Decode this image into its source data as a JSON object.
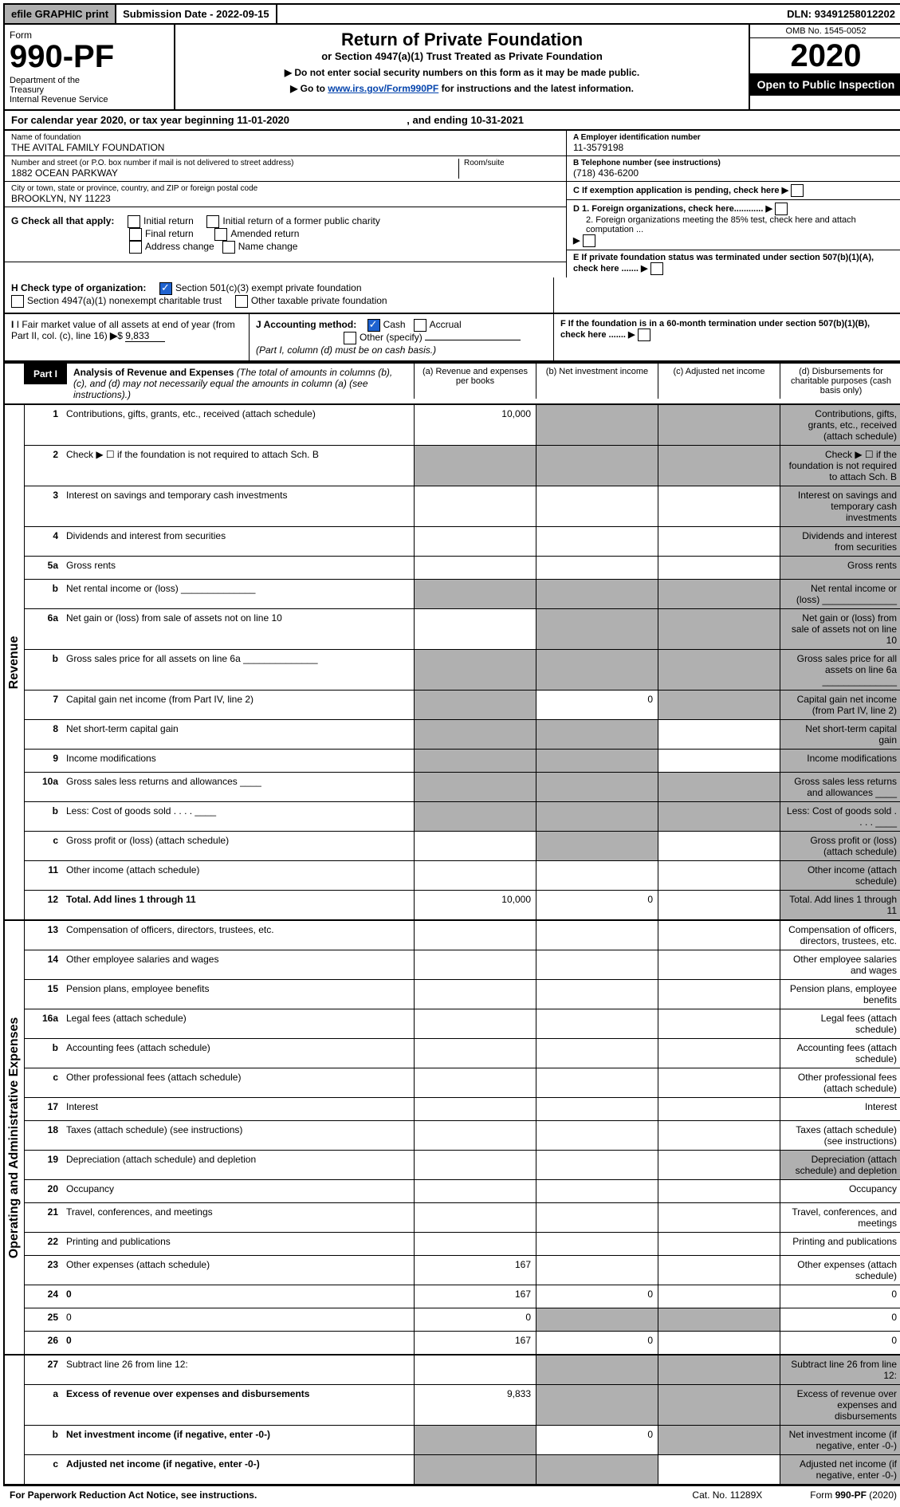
{
  "topbar": {
    "efile": "efile GRAPHIC print",
    "subdate_label": "Submission Date - ",
    "subdate": "2022-09-15",
    "dln_label": "DLN: ",
    "dln": "93491258012202"
  },
  "header": {
    "form_word": "Form",
    "form_no": "990-PF",
    "dept": "Department of the Treasury\nInternal Revenue Service",
    "title": "Return of Private Foundation",
    "subtitle": "or Section 4947(a)(1) Trust Treated as Private Foundation",
    "note1": "▶ Do not enter social security numbers on this form as it may be made public.",
    "note2_pre": "▶ Go to ",
    "note2_link": "www.irs.gov/Form990PF",
    "note2_post": " for instructions and the latest information.",
    "omb": "OMB No. 1545-0052",
    "year": "2020",
    "open": "Open to Public Inspection"
  },
  "calrow": {
    "pre": "For calendar year 2020, or tax year beginning ",
    "begin": "11-01-2020",
    "mid": ", and ending ",
    "end": "10-31-2021"
  },
  "info": {
    "name_label": "Name of foundation",
    "name": "THE AVITAL FAMILY FOUNDATION",
    "addr_label": "Number and street (or P.O. box number if mail is not delivered to street address)",
    "addr": "1882 OCEAN PARKWAY",
    "room_label": "Room/suite",
    "city_label": "City or town, state or province, country, and ZIP or foreign postal code",
    "city": "BROOKLYN, NY  11223",
    "ein_label": "A Employer identification number",
    "ein": "11-3579198",
    "tel_label": "B Telephone number (see instructions)",
    "tel": "(718) 436-6200",
    "c": "C If exemption application is pending, check here",
    "d1": "D 1. Foreign organizations, check here............",
    "d2": "2. Foreign organizations meeting the 85% test, check here and attach computation ...",
    "e": "E  If private foundation status was terminated under section 507(b)(1)(A), check here .......",
    "f": "F  If the foundation is in a 60-month termination under section 507(b)(1)(B), check here .......",
    "g_label": "G Check all that apply:",
    "g": {
      "initial": "Initial return",
      "initial_former": "Initial return of a former public charity",
      "final": "Final return",
      "amended": "Amended return",
      "addr_change": "Address change",
      "name_change": "Name change"
    },
    "h": "H Check type of organization:",
    "h_opts": {
      "501c3": "Section 501(c)(3) exempt private foundation",
      "4947": "Section 4947(a)(1) nonexempt charitable trust",
      "other_tax": "Other taxable private foundation"
    },
    "i_label": "I Fair market value of all assets at end of year (from Part II, col. (c), line 16)",
    "i_val": "9,833",
    "j": "J Accounting method:",
    "j_cash": "Cash",
    "j_accrual": "Accrual",
    "j_other": "Other (specify)",
    "j_note": "(Part I, column (d) must be on cash basis.)"
  },
  "part1": {
    "tag": "Part I",
    "title": "Analysis of Revenue and Expenses",
    "title_note": "(The total of amounts in columns (b), (c), and (d) may not necessarily equal the amounts in column (a) (see instructions).)",
    "cols": {
      "a": "(a)   Revenue and expenses per books",
      "b": "(b)   Net investment income",
      "c": "(c)   Adjusted net income",
      "d": "(d)  Disbursements for charitable purposes (cash basis only)"
    }
  },
  "sidelabels": {
    "rev": "Revenue",
    "opex": "Operating and Administrative Expenses"
  },
  "rows": [
    {
      "n": "1",
      "d": "Contributions, gifts, grants, etc., received (attach schedule)",
      "a": "10,000",
      "shade_bcd": true,
      "shade_d": true
    },
    {
      "n": "2",
      "d": "Check ▶ ☐ if the foundation is not required to attach Sch. B",
      "allshade": true
    },
    {
      "n": "3",
      "d": "Interest on savings and temporary cash investments",
      "shade_d": true
    },
    {
      "n": "4",
      "d": "Dividends and interest from securities",
      "shade_d": true
    },
    {
      "n": "5a",
      "d": "Gross rents",
      "shade_d": true
    },
    {
      "n": "b",
      "d": "Net rental income or (loss) ______________",
      "allshade": true
    },
    {
      "n": "6a",
      "d": "Net gain or (loss) from sale of assets not on line 10",
      "shade_bcd": true,
      "shade_d": true
    },
    {
      "n": "b",
      "d": "Gross sales price for all assets on line 6a ______________",
      "allshade": true
    },
    {
      "n": "7",
      "d": "Capital gain net income (from Part IV, line 2)",
      "shade_a": true,
      "b": "0",
      "shade_cd": true
    },
    {
      "n": "8",
      "d": "Net short-term capital gain",
      "shade_ab": true,
      "shade_d": true
    },
    {
      "n": "9",
      "d": "Income modifications",
      "shade_ab": true,
      "shade_d": true
    },
    {
      "n": "10a",
      "d": "Gross sales less returns and allowances  ____",
      "allshade": true
    },
    {
      "n": "b",
      "d": "Less: Cost of goods sold   .   .   .   .   ____",
      "allshade": true
    },
    {
      "n": "c",
      "d": "Gross profit or (loss) (attach schedule)",
      "shade_b": true,
      "shade_d": true
    },
    {
      "n": "11",
      "d": "Other income (attach schedule)",
      "shade_d": true
    },
    {
      "n": "12",
      "d": "Total. Add lines 1 through 11",
      "bold": true,
      "a": "10,000",
      "b": "0",
      "shade_d": true
    }
  ],
  "oprows": [
    {
      "n": "13",
      "d": "Compensation of officers, directors, trustees, etc."
    },
    {
      "n": "14",
      "d": "Other employee salaries and wages"
    },
    {
      "n": "15",
      "d": "Pension plans, employee benefits"
    },
    {
      "n": "16a",
      "d": "Legal fees (attach schedule)"
    },
    {
      "n": "b",
      "d": "Accounting fees (attach schedule)"
    },
    {
      "n": "c",
      "d": "Other professional fees (attach schedule)"
    },
    {
      "n": "17",
      "d": "Interest"
    },
    {
      "n": "18",
      "d": "Taxes (attach schedule) (see instructions)"
    },
    {
      "n": "19",
      "d": "Depreciation (attach schedule) and depletion",
      "shade_d": true
    },
    {
      "n": "20",
      "d": "Occupancy"
    },
    {
      "n": "21",
      "d": "Travel, conferences, and meetings"
    },
    {
      "n": "22",
      "d": "Printing and publications"
    },
    {
      "n": "23",
      "d": "Other expenses (attach schedule)",
      "a": "167"
    },
    {
      "n": "24",
      "d": "0",
      "bold": true,
      "a": "167",
      "b": "0"
    },
    {
      "n": "25",
      "d": "0",
      "a": "0",
      "shade_bc": true
    },
    {
      "n": "26",
      "d": "0",
      "bold": true,
      "a": "167",
      "b": "0"
    }
  ],
  "botrows": [
    {
      "n": "27",
      "d": "Subtract line 26 from line 12:",
      "allshade_bcd": true
    },
    {
      "n": "a",
      "d": "Excess of revenue over expenses and disbursements",
      "bold": true,
      "a": "9,833",
      "shade_bcd": true
    },
    {
      "n": "b",
      "d": "Net investment income (if negative, enter -0-)",
      "bold": true,
      "shade_a": true,
      "b": "0",
      "shade_cd": true
    },
    {
      "n": "c",
      "d": "Adjusted net income (if negative, enter -0-)",
      "bold": true,
      "shade_ab": true,
      "shade_d": true
    }
  ],
  "footer": {
    "left": "For Paperwork Reduction Act Notice, see instructions.",
    "mid": "Cat. No. 11289X",
    "right": "Form 990-PF (2020)"
  }
}
